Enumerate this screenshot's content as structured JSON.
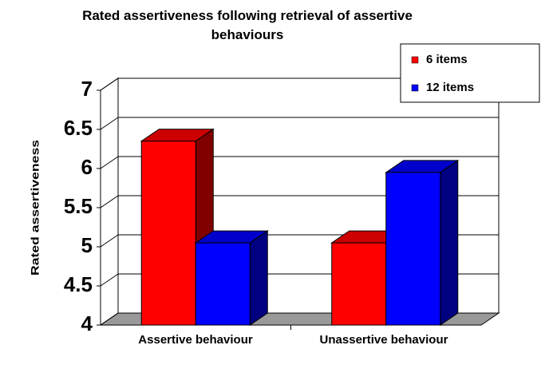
{
  "chart_data": {
    "type": "bar3d",
    "title": "Rated assertiveness following retrieval of assertive behaviours",
    "y_label": "Rated assertiveness",
    "categories": [
      "Assertive behaviour",
      "Unassertive behaviour"
    ],
    "series": [
      {
        "name": "6 items",
        "color": "#ff0000",
        "values": [
          6.35,
          5.05
        ]
      },
      {
        "name": "12 items",
        "color": "#0000ff",
        "values": [
          5.05,
          5.95
        ]
      }
    ],
    "ylim": [
      4,
      7
    ],
    "yticks": [
      4,
      4.5,
      5,
      5.5,
      6,
      6.5,
      7
    ],
    "grid": true,
    "legend": "top-right"
  }
}
